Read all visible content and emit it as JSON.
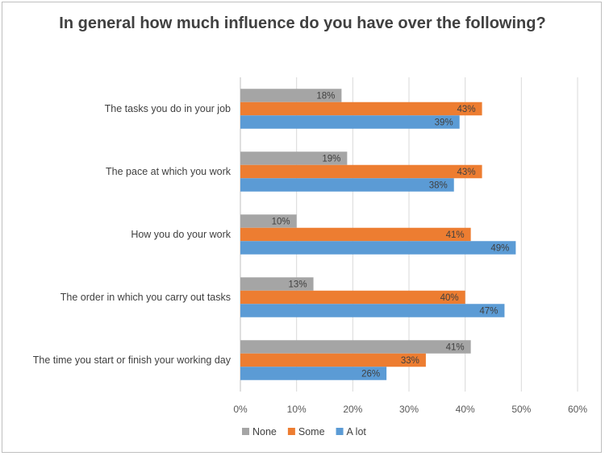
{
  "chart_data": {
    "type": "bar",
    "orientation": "horizontal",
    "title": "In general how much influence do you have over the following?",
    "categories": [
      "The tasks you do in your job",
      "The pace at which you work",
      "How you do your work",
      "The order in which you carry out tasks",
      "The time you start or finish your working day"
    ],
    "series": [
      {
        "name": "None",
        "color": "#a5a5a5",
        "values": [
          18,
          19,
          10,
          13,
          41
        ]
      },
      {
        "name": "Some",
        "color": "#ed7d31",
        "values": [
          43,
          43,
          41,
          40,
          33
        ]
      },
      {
        "name": "A lot",
        "color": "#5b9bd5",
        "values": [
          39,
          38,
          49,
          47,
          26
        ]
      }
    ],
    "xlim": [
      0,
      60
    ],
    "xticks": [
      "0%",
      "10%",
      "20%",
      "30%",
      "40%",
      "50%",
      "60%"
    ],
    "value_suffix": "%",
    "grid": "vertical",
    "legend": "bottom"
  }
}
